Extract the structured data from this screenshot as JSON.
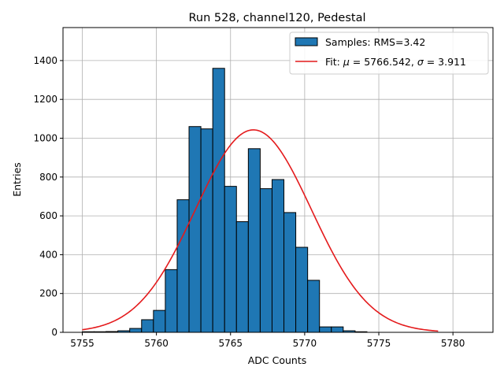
{
  "chart_data": {
    "type": "bar",
    "title": "Run 528, channel120, Pedestal",
    "xlabel": "ADC Counts",
    "ylabel": "Entries",
    "xlim": [
      5753.7,
      5782.7
    ],
    "ylim": [
      0,
      1570
    ],
    "xticks": [
      5755,
      5760,
      5765,
      5770,
      5775,
      5780
    ],
    "yticks": [
      0,
      200,
      400,
      600,
      800,
      1000,
      1200,
      1400
    ],
    "grid": true,
    "legend_position": "top-right",
    "bin_edges": [
      5755,
      5756.6,
      5758.2,
      5759.8,
      5761.4,
      5763.0,
      5764.6,
      5766.2,
      5767.8,
      5769.4,
      5771.0,
      5772.6,
      5774.2,
      5775.8,
      5777.4,
      5779.0
    ],
    "bins": [
      {
        "x0": 5755.0,
        "x1": 5755.8,
        "count": 3
      },
      {
        "x0": 5755.8,
        "x1": 5756.6,
        "count": 3
      },
      {
        "x0": 5756.6,
        "x1": 5757.4,
        "count": 4
      },
      {
        "x0": 5757.4,
        "x1": 5758.2,
        "count": 8
      },
      {
        "x0": 5758.2,
        "x1": 5759.0,
        "count": 20
      },
      {
        "x0": 5759.0,
        "x1": 5759.8,
        "count": 65
      },
      {
        "x0": 5759.8,
        "x1": 5760.6,
        "count": 113
      },
      {
        "x0": 5760.6,
        "x1": 5761.4,
        "count": 323
      },
      {
        "x0": 5761.4,
        "x1": 5762.2,
        "count": 683
      },
      {
        "x0": 5762.2,
        "x1": 5763.0,
        "count": 1060
      },
      {
        "x0": 5763.0,
        "x1": 5763.8,
        "count": 1048
      },
      {
        "x0": 5763.8,
        "x1": 5764.6,
        "count": 1360
      },
      {
        "x0": 5764.6,
        "x1": 5765.4,
        "count": 752
      },
      {
        "x0": 5765.4,
        "x1": 5766.2,
        "count": 570
      },
      {
        "x0": 5766.2,
        "x1": 5767.0,
        "count": 946
      },
      {
        "x0": 5767.0,
        "x1": 5767.8,
        "count": 740
      },
      {
        "x0": 5767.8,
        "x1": 5768.6,
        "count": 787
      },
      {
        "x0": 5768.6,
        "x1": 5769.4,
        "count": 617
      },
      {
        "x0": 5769.4,
        "x1": 5770.2,
        "count": 438
      },
      {
        "x0": 5770.2,
        "x1": 5771.0,
        "count": 268
      },
      {
        "x0": 5771.0,
        "x1": 5771.8,
        "count": 28
      },
      {
        "x0": 5771.8,
        "x1": 5772.6,
        "count": 28
      },
      {
        "x0": 5772.6,
        "x1": 5773.4,
        "count": 8
      },
      {
        "x0": 5773.4,
        "x1": 5774.2,
        "count": 3
      }
    ],
    "series": [
      {
        "name": "Samples: RMS=3.42",
        "kind": "histogram",
        "color": "#1f77b4",
        "edgecolor": "#000000"
      },
      {
        "name_prefix": "Fit: ",
        "name_mu": "μ",
        "name_mid": " = 5766.542, ",
        "name_sigma": "σ",
        "name_suffix": " = 3.911",
        "kind": "gaussian-fit",
        "color": "#e41a1c",
        "mu": 5766.542,
        "sigma": 3.911,
        "amplitude": 1043,
        "x_range": [
          5755,
          5779
        ]
      }
    ]
  }
}
